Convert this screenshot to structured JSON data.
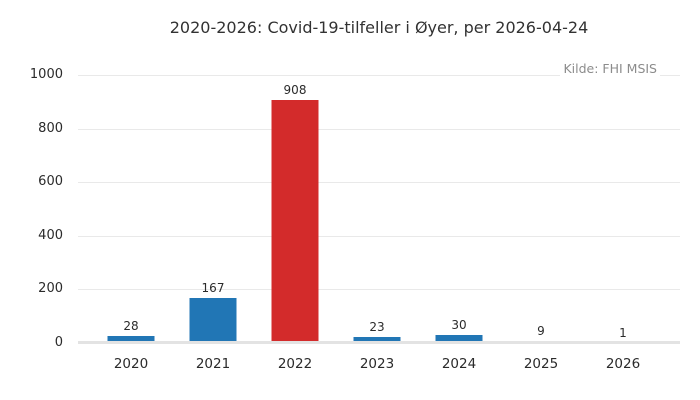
{
  "chart_data": {
    "type": "bar",
    "title": "2020-2026: Covid-19-tilfeller i Øyer, per 2026-04-24",
    "source_annotation": "Kilde: FHI MSIS",
    "categories": [
      "2020",
      "2021",
      "2022",
      "2023",
      "2024",
      "2025",
      "2026"
    ],
    "values": [
      28,
      167,
      908,
      23,
      30,
      9,
      1
    ],
    "value_labels": [
      "28",
      "167",
      "908",
      "23",
      "30",
      "9",
      "1"
    ],
    "highlight_category": "2022",
    "highlight_index": 2,
    "xlabel": "",
    "ylabel": "",
    "ylim": [
      0,
      1000
    ],
    "yticks": [
      0,
      200,
      400,
      600,
      800,
      1000
    ],
    "grid": true,
    "legend_position": "none",
    "colors": {
      "bar_default": "#2176b5",
      "bar_highlight": "#d32b2b",
      "gridline": "#e9e9e9",
      "axis_line": "#e3e3e3",
      "text": "#2b2b2b",
      "title_text": "#323232",
      "muted_text": "#8c8c8c"
    }
  }
}
